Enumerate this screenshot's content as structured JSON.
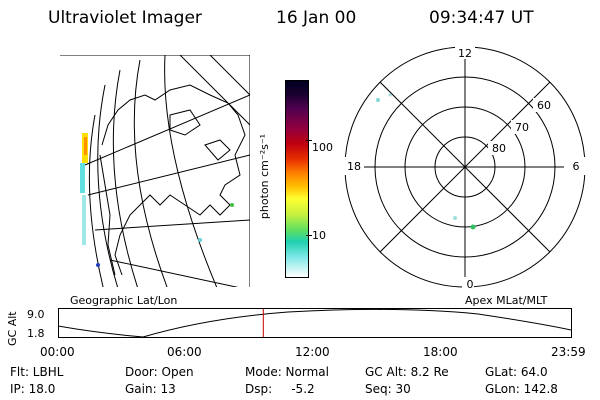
{
  "header": {
    "instrument": "Ultraviolet Imager",
    "date": "16 Jan 00",
    "time": "09:34:47 UT"
  },
  "left_map": {
    "caption": "Geographic Lat/Lon"
  },
  "right_map": {
    "caption": "Apex MLat/MLT",
    "lat_labels": [
      "60",
      "70",
      "80"
    ],
    "mlt_labels": {
      "top": "12",
      "left": "18",
      "right": "6",
      "bottom": "0"
    }
  },
  "colorbar": {
    "unit": "photon cm⁻²s⁻¹",
    "ticks": [
      "100",
      "10"
    ],
    "colors": [
      "#000020",
      "#1a0030",
      "#500050",
      "#900040",
      "#c00010",
      "#e83000",
      "#ff8000",
      "#ffc000",
      "#ffff30",
      "#c8f040",
      "#60e060",
      "#20d0b0",
      "#80e8e8",
      "#ffffff"
    ]
  },
  "timeline": {
    "ylabel": "GC Alt",
    "ymax": "9.0",
    "ymin": "1.8",
    "xticks": [
      "00:00",
      "06:00",
      "12:00",
      "18:00",
      "23:59"
    ],
    "marker_time": "09:34:47",
    "marker_color": "#cc0000"
  },
  "info": {
    "flt": "Flt: LBHL",
    "door": "Door: Open",
    "mode": "Mode: Normal",
    "gcalt": "GC Alt: 8.2 Re",
    "glat": "GLat: 64.0",
    "ip": "IP: 18.0",
    "gain": "Gain: 13",
    "dsp": "Dsp:     -5.2",
    "seq": "Seq: 30",
    "glon": "GLon: 142.8"
  }
}
